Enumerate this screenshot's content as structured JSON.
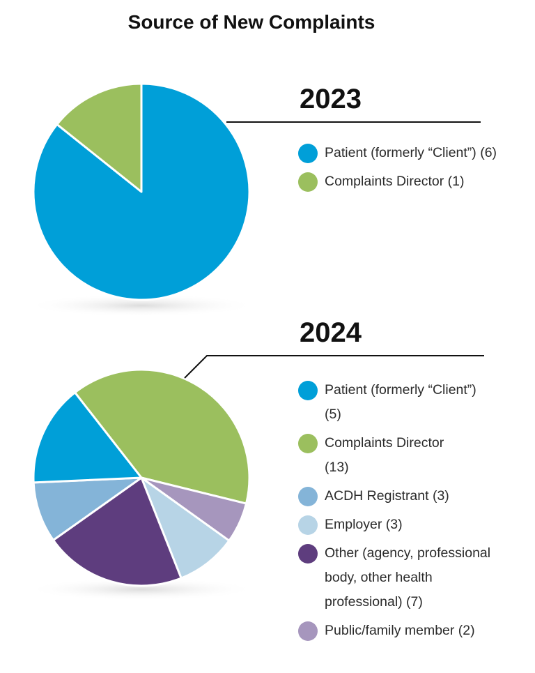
{
  "title": "Source of New Complaints",
  "chart_data": [
    {
      "type": "pie",
      "title": "2023",
      "categories": [
        "Patient (formerly “Client”) (6)",
        "Complaints Director (1)"
      ],
      "values": [
        6,
        1
      ],
      "colors": [
        "#009fd8",
        "#9bbf5e"
      ],
      "legend": "right"
    },
    {
      "type": "pie",
      "title": "2024",
      "categories": [
        "Patient (formerly “Client”) (5)",
        "Complaints Director (13)",
        "ACDH Registrant (3)",
        "Employer (3)",
        "Other (agency, professional body, other health professional) (7)",
        "Public/family member (2)"
      ],
      "values": [
        5,
        13,
        3,
        3,
        7,
        2
      ],
      "colors": [
        "#009fd8",
        "#9bbf5e",
        "#84b4d8",
        "#b7d4e6",
        "#5e3d7e",
        "#a696bd"
      ],
      "legend": "right"
    }
  ]
}
